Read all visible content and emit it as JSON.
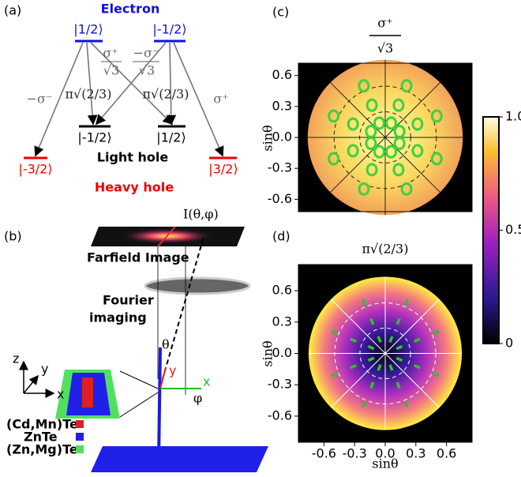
{
  "panel_a": {
    "label": "(a)",
    "electron": "Electron",
    "electron_states": [
      "|1/2⟩",
      "|-1/2⟩"
    ],
    "light_hole_states": [
      "|-1/2⟩",
      "|1/2⟩"
    ],
    "heavy_hole_states": [
      "|-3/2⟩",
      "|3/2⟩"
    ],
    "light_hole": "Light hole",
    "heavy_hole": "Heavy hole",
    "minus_sigma_minus": "−σ⁻",
    "sigma_plus": "σ⁺",
    "pi_left": "π√(2/3)",
    "pi_right": "π√(2/3)",
    "sigma_plus_num": "σ⁺",
    "sigma_plus_den": "√3",
    "minus_sigma_minus_num": "−σ⁻",
    "minus_sigma_minus_den": "√3"
  },
  "panel_b": {
    "label": "(b)",
    "intensity": "I(θ,φ)",
    "farfield": "Farfield Image",
    "fourier_1": "Fourier",
    "fourier_2": "imaging",
    "theta": "θ",
    "phi": "φ",
    "axis_z": "z",
    "axis_y": "y",
    "axis_x": "x",
    "wire_x": "x",
    "wire_y": "y",
    "legend": [
      "(Cd,Mn)Te",
      "ZnTe",
      "(Zn,Mg)Te"
    ]
  },
  "chart_data": [
    {
      "type": "heatmap",
      "label": "(c)",
      "title_num": "σ⁺",
      "title_den": "√3",
      "ylabel": "sinθ",
      "xlim": [
        -0.84,
        0.84
      ],
      "ylim": [
        -0.72,
        0.72
      ],
      "yticks": [
        0.6,
        0.3,
        {
          "value": 0,
          "label": "0.0"
        },
        -0.3,
        -0.6
      ]
    },
    {
      "type": "heatmap",
      "label": "(d)",
      "title": "π√(2/3)",
      "xlabel": "sinθ",
      "ylabel": "sinθ",
      "xlim": [
        -0.85,
        0.85
      ],
      "ylim": [
        -0.85,
        0.85
      ],
      "xticks": [
        -0.6,
        -0.3,
        {
          "value": 0,
          "label": "0.0"
        },
        0.3,
        0.6
      ],
      "yticks": [
        0.6,
        0.3,
        {
          "value": 0,
          "label": "0.0"
        },
        -0.3,
        -0.6
      ]
    }
  ],
  "colorbar": {
    "lim": [
      0,
      1
    ],
    "ticks": [
      {
        "value": 1,
        "label": "1.0"
      },
      0.5,
      0
    ]
  }
}
